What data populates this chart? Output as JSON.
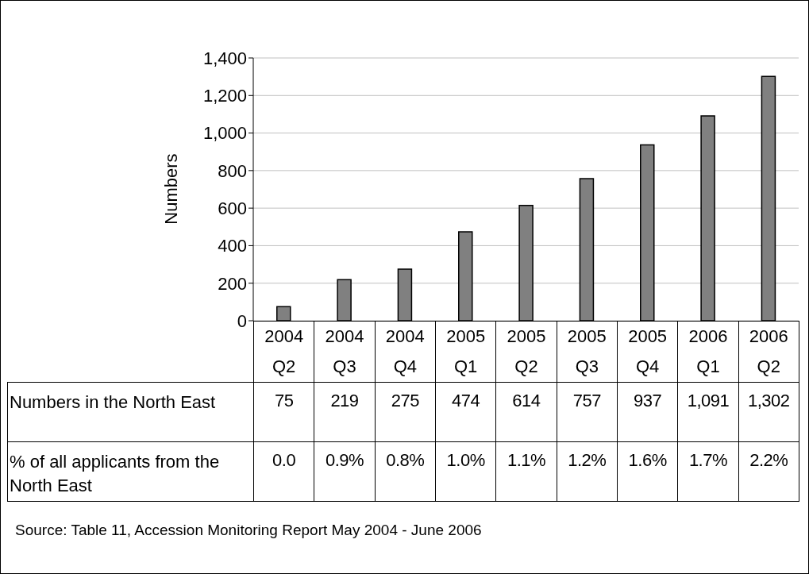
{
  "chart_data": {
    "type": "bar",
    "ylabel": "Numbers",
    "categories": [
      "2004 Q2",
      "2004 Q3",
      "2004 Q4",
      "2005 Q1",
      "2005 Q2",
      "2005 Q3",
      "2005 Q4",
      "2006 Q1",
      "2006 Q2"
    ],
    "series": [
      {
        "name": "Numbers in the North East",
        "color": "#808080",
        "values": [
          75,
          219,
          275,
          474,
          614,
          757,
          937,
          1091,
          1302
        ],
        "value_labels": [
          "75",
          "219",
          "275",
          "474",
          "614",
          "757",
          "937",
          "1,091",
          "1,302"
        ]
      },
      {
        "name": "% of all applicants from the North East",
        "values": [
          null,
          null,
          null,
          null,
          null,
          null,
          null,
          null,
          null
        ],
        "value_labels": [
          "0.0",
          "0.9%",
          "0.8%",
          "1.0%",
          "1.1%",
          "1.2%",
          "1.6%",
          "1.7%",
          "2.2%"
        ]
      }
    ],
    "ylim": [
      0,
      1400
    ],
    "yticks": [
      {
        "value": 0,
        "label": "0"
      },
      {
        "value": 200,
        "label": "200"
      },
      {
        "value": 400,
        "label": "400"
      },
      {
        "value": 600,
        "label": "600"
      },
      {
        "value": 800,
        "label": "800"
      },
      {
        "value": 1000,
        "label": "1,000"
      },
      {
        "value": 1200,
        "label": "1,200"
      },
      {
        "value": 1400,
        "label": "1,400"
      }
    ],
    "grid": "y",
    "annotations": [
      "Source: Table 11, Accession Monitoring Report May 2004 - June 2006"
    ]
  }
}
